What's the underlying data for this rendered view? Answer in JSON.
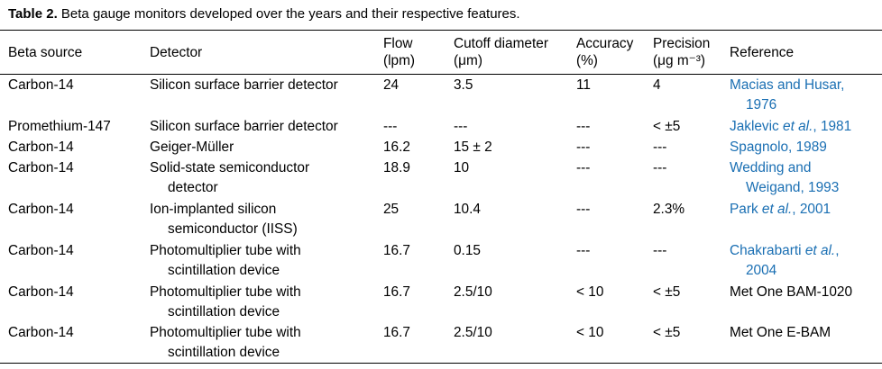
{
  "caption": {
    "label": "Table 2.",
    "text": " Beta gauge monitors developed over the years and their respective features."
  },
  "headers": {
    "source": "Beta source",
    "detector": "Detector",
    "flow_1": "Flow",
    "flow_2": "(lpm)",
    "cutoff_1": "Cutoff diameter",
    "cutoff_2": "(μm)",
    "accuracy_1": "Accuracy",
    "accuracy_2": "(%)",
    "precision_1": "Precision",
    "precision_2": "(μg m⁻³)",
    "reference": "Reference"
  },
  "rows": [
    {
      "source": "Carbon-14",
      "detector_1": "Silicon surface barrier detector",
      "detector_2": "",
      "flow": "24",
      "cutoff": "3.5",
      "accuracy": "11",
      "precision": "4",
      "ref_1": "Macias and Husar,",
      "ref_1b": "",
      "ref_2": "1976",
      "ref_2b": "",
      "ref_link": true
    },
    {
      "source": "Promethium-147",
      "detector_1": "Silicon surface barrier detector",
      "detector_2": "",
      "flow": "---",
      "cutoff": "---",
      "accuracy": "---",
      "precision": "< ±5",
      "ref_1": "Jaklevic ",
      "ref_1b": "et al.",
      "ref_2": "",
      "ref_2b": ", 1981",
      "ref_link": true
    },
    {
      "source": "Carbon-14",
      "detector_1": "Geiger-Müller",
      "detector_2": "",
      "flow": "16.2",
      "cutoff": "15 ± 2",
      "accuracy": "---",
      "precision": "---",
      "ref_1": "Spagnolo, 1989",
      "ref_1b": "",
      "ref_2": "",
      "ref_2b": "",
      "ref_link": true
    },
    {
      "source": "Carbon-14",
      "detector_1": "Solid-state semiconductor",
      "detector_2": "detector",
      "flow": "18.9",
      "cutoff": "10",
      "accuracy": "---",
      "precision": "---",
      "ref_1": "Wedding and",
      "ref_1b": "",
      "ref_2": "Weigand, 1993",
      "ref_2b": "",
      "ref_link": true
    },
    {
      "source": "Carbon-14",
      "detector_1": "Ion-implanted silicon",
      "detector_2": "semiconductor (IISS)",
      "flow": "25",
      "cutoff": "10.4",
      "accuracy": "---",
      "precision": "2.3%",
      "ref_1": "Park ",
      "ref_1b": "et al.",
      "ref_2": "",
      "ref_2b": ", 2001",
      "ref_link": true
    },
    {
      "source": "Carbon-14",
      "detector_1": "Photomultiplier tube with",
      "detector_2": "scintillation device",
      "flow": "16.7",
      "cutoff": "0.15",
      "accuracy": "---",
      "precision": "---",
      "ref_1": "Chakrabarti ",
      "ref_1b": "et al.",
      "ref_2": "2004",
      "ref_2b": ",",
      "ref_link": true
    },
    {
      "source": "Carbon-14",
      "detector_1": "Photomultiplier tube with",
      "detector_2": "scintillation device",
      "flow": "16.7",
      "cutoff": "2.5/10",
      "accuracy": "< 10",
      "precision": "< ±5",
      "ref_1": "Met One BAM-1020",
      "ref_1b": "",
      "ref_2": "",
      "ref_2b": "",
      "ref_link": false
    },
    {
      "source": "Carbon-14",
      "detector_1": "Photomultiplier tube with",
      "detector_2": "scintillation device",
      "flow": "16.7",
      "cutoff": "2.5/10",
      "accuracy": "< 10",
      "precision": "< ±5",
      "ref_1": "Met One E-BAM",
      "ref_1b": "",
      "ref_2": "",
      "ref_2b": "",
      "ref_link": false
    }
  ]
}
